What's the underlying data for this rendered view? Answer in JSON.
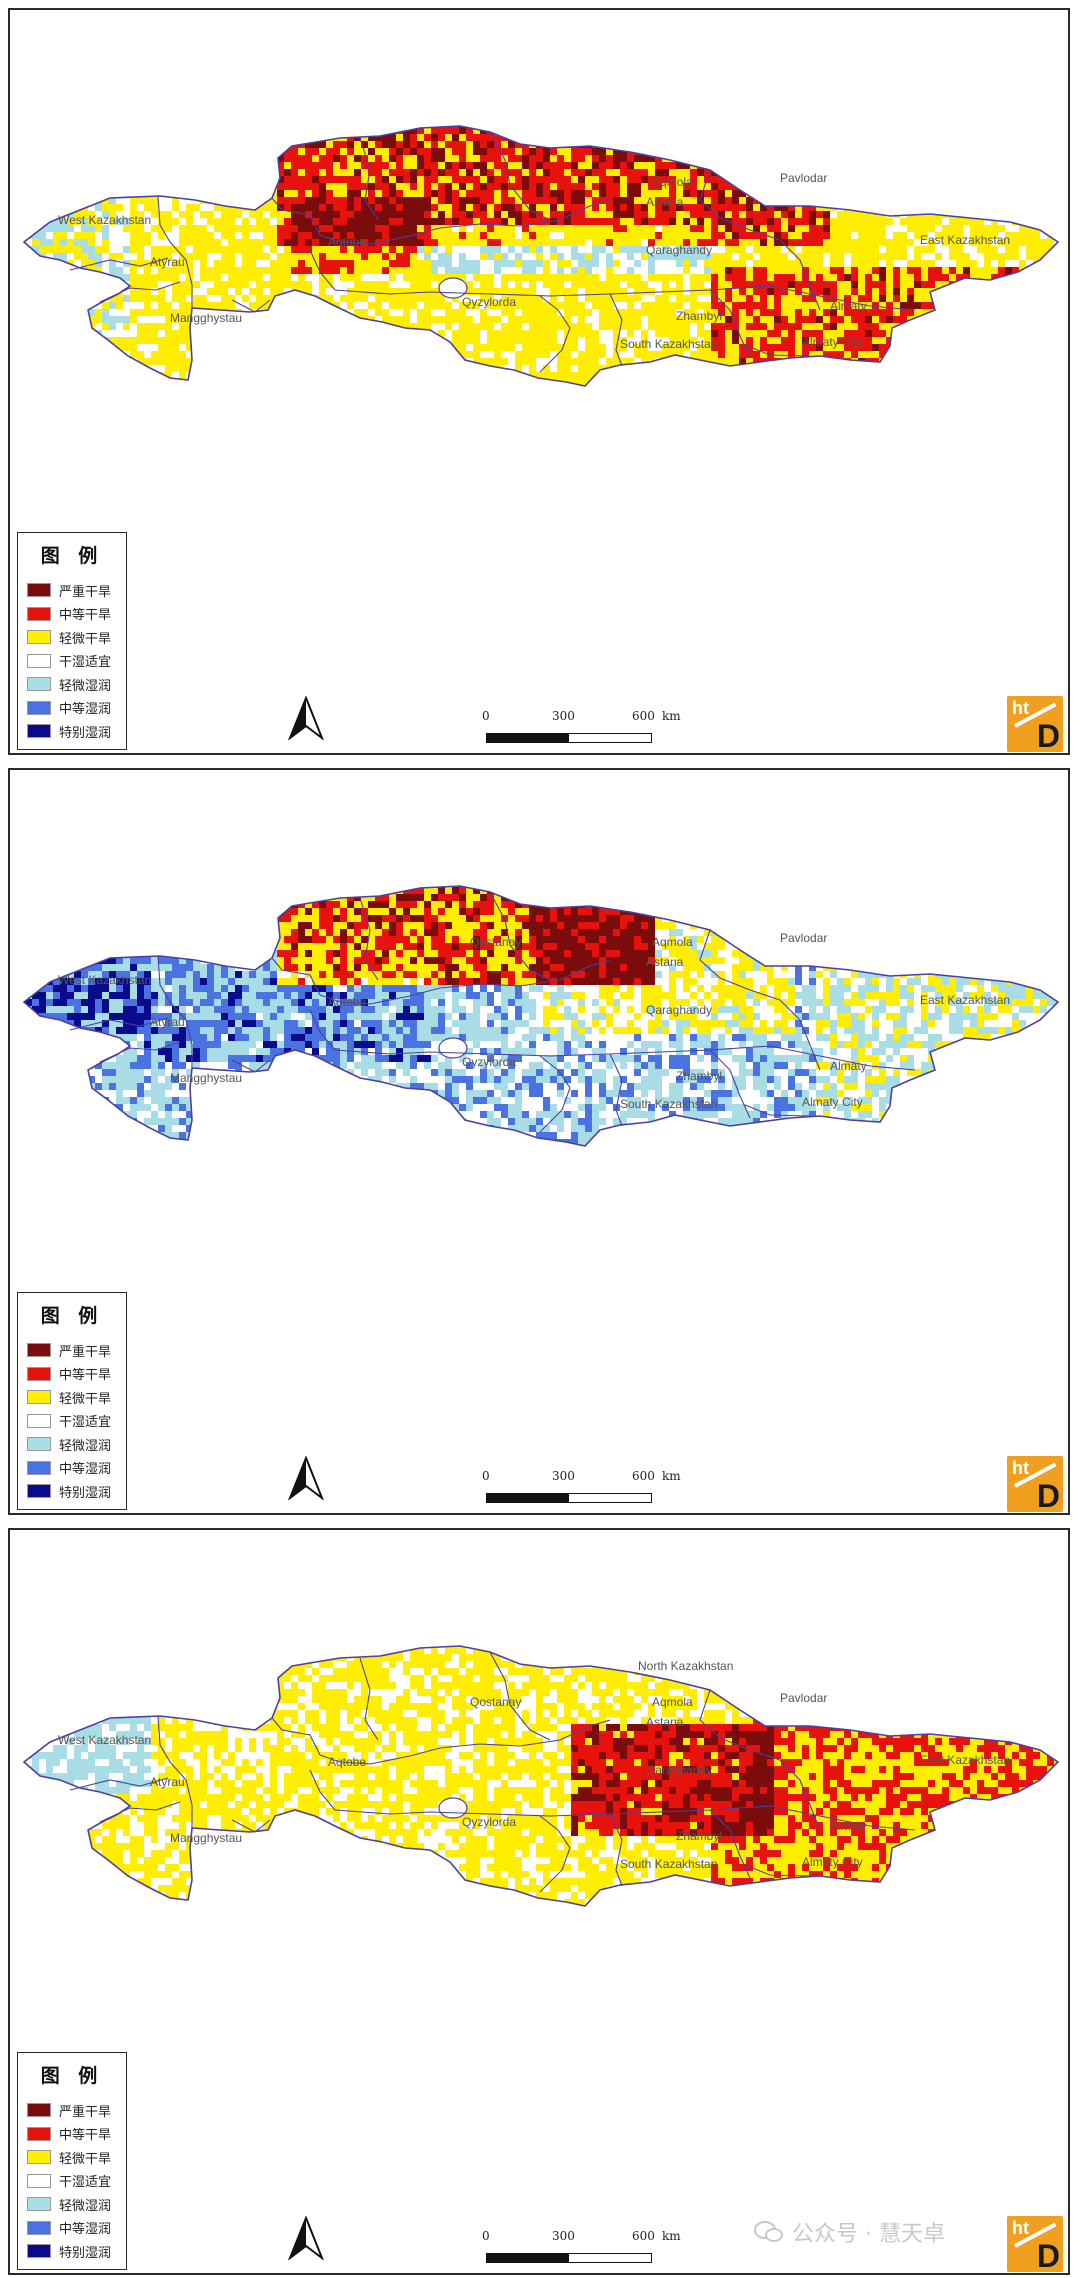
{
  "panels": [
    {
      "scheme": "drought",
      "regions": {
        "west_kazakhstan": "West Kazakhstan",
        "atyrau": "Atyrau",
        "mangghystau": "Mangghystau",
        "aqtobe": "Aqtobe",
        "qostanay": "",
        "north_kaz": "",
        "aqmola": "Aqmola",
        "astana": "Astana",
        "pavlodar": "Pavlodar",
        "qaraghandy": "Qaraghandy",
        "east_kazakhstan": "East Kazakhstan",
        "qyzylorda": "Qyzylorda",
        "zhambyl": "Zhambyl",
        "almaty": "Almaty",
        "south_kazakhstan": "South Kazakhstan",
        "almaty_city": "Almaty City"
      }
    },
    {
      "scheme": "wet",
      "regions": {
        "west_kazakhstan": "West Kazakhstan",
        "atyrau": "Atyrau",
        "mangghystau": "Mangghystau",
        "aqtobe": "Aqtobe",
        "qostanay": "Qostanay",
        "north_kaz": "",
        "aqmola": "Aqmola",
        "astana": "Astana",
        "pavlodar": "Pavlodar",
        "qaraghandy": "Qaraghandy",
        "east_kazakhstan": "East Kazakhstan",
        "qyzylorda": "Qyzylorda",
        "zhambyl": "Zhambyl",
        "almaty": "Almaty",
        "south_kazakhstan": "South Kazakhstan",
        "almaty_city": "Almaty City"
      }
    },
    {
      "scheme": "mixed",
      "regions": {
        "west_kazakhstan": "West Kazakhstan",
        "atyrau": "Atyrau",
        "mangghystau": "Mangghystau",
        "aqtobe": "Aqtobe",
        "qostanay": "Qostanay",
        "north_kaz": "North Kazakhstan",
        "aqmola": "Aqmola",
        "astana": "Astana",
        "pavlodar": "Pavlodar",
        "qaraghandy": "Qaraghandy",
        "east_kazakhstan": "East Kazakhstan",
        "qyzylorda": "Qyzylorda",
        "zhambyl": "Zhambyl",
        "almaty": "Almaty",
        "south_kazakhstan": "South Kazakhstan",
        "almaty_city": "Almaty City"
      }
    }
  ],
  "legend": {
    "title": "图 例",
    "items": [
      {
        "label": "严重干旱",
        "color": "#7b0c0c"
      },
      {
        "label": "中等干旱",
        "color": "#e8120c"
      },
      {
        "label": "轻微干旱",
        "color": "#ffee00"
      },
      {
        "label": "干湿适宜",
        "color": "#ffffff"
      },
      {
        "label": "轻微湿润",
        "color": "#a8dde6"
      },
      {
        "label": "中等湿润",
        "color": "#4a72e0"
      },
      {
        "label": "特别湿润",
        "color": "#0a0a8c"
      }
    ]
  },
  "scale": {
    "t0": "0",
    "t1": "300",
    "t2": "600",
    "unit": "km"
  },
  "logo": {
    "top": "ht",
    "bottom": "D"
  },
  "watermark": {
    "text": "公众号 · 慧天卓"
  },
  "colors": {
    "border": "#4b3fa3"
  }
}
